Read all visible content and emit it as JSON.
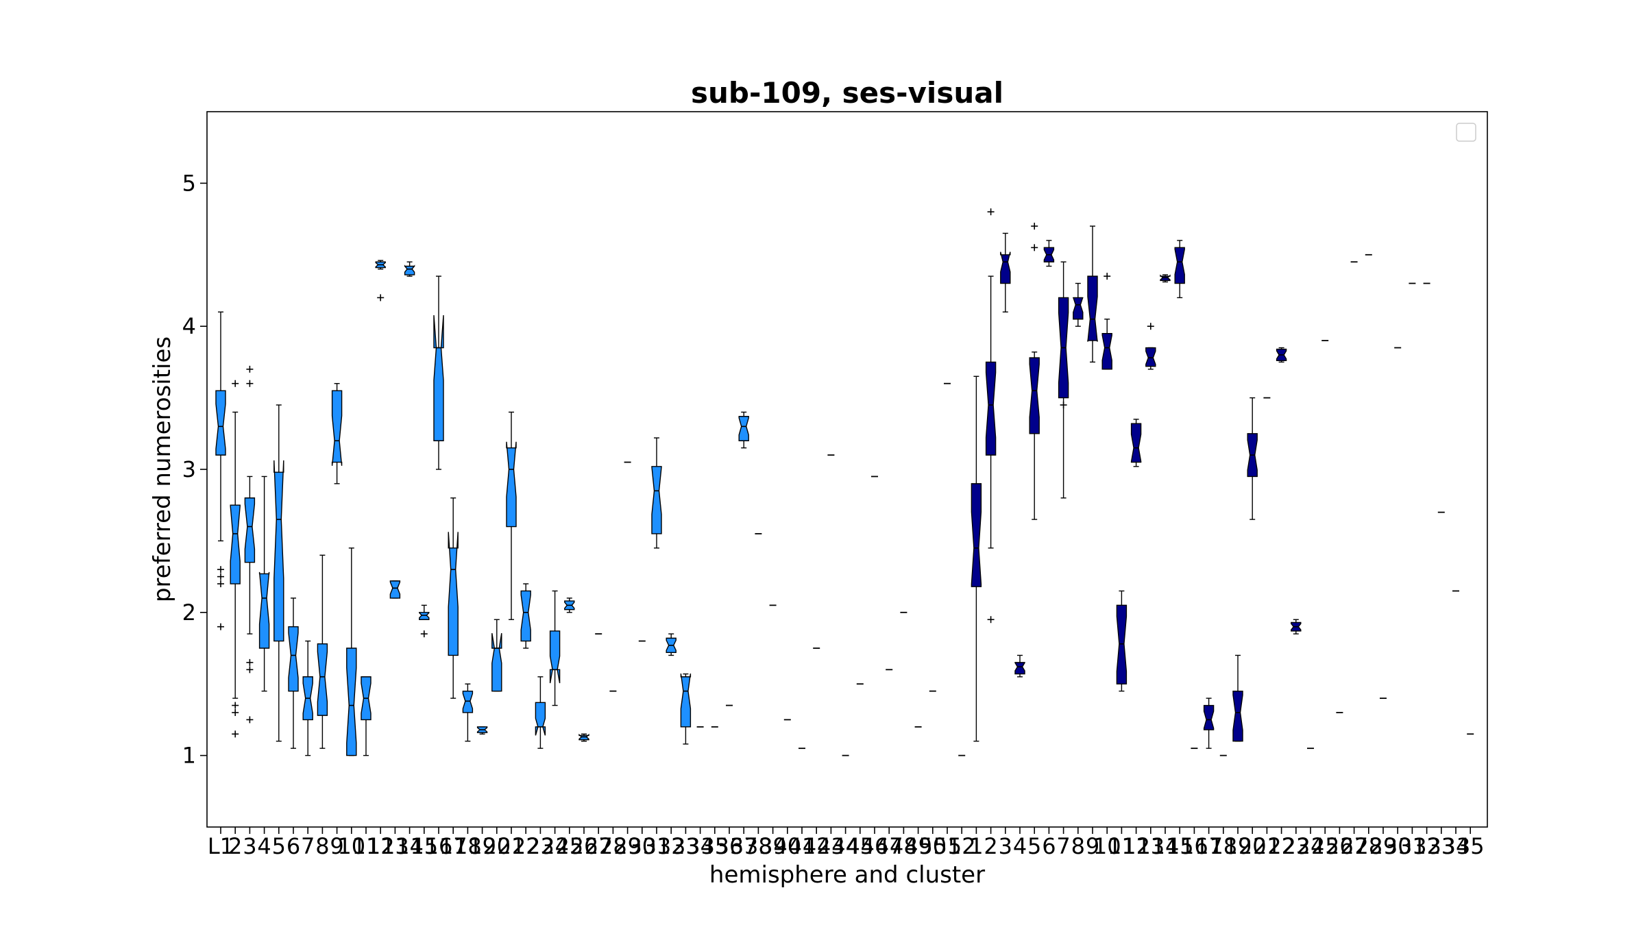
{
  "chart_data": {
    "type": "boxplot",
    "title": "sub-109, ses-visual",
    "xlabel": "hemisphere and cluster",
    "ylabel": "preferred numerosities",
    "ylim": [
      0.5,
      5.5
    ],
    "yticks": [
      1,
      2,
      3,
      4,
      5
    ],
    "legend": "top-right (empty)",
    "grid": false,
    "notched": true,
    "colors": {
      "left": "#1e90ff",
      "right": "#00008b",
      "edge": "#000000",
      "median": "#000000"
    },
    "categories": [
      "L1",
      "L2",
      "L3",
      "L4",
      "L5",
      "L6",
      "L7",
      "L8",
      "L9",
      "L10",
      "L11",
      "L12",
      "L13",
      "L14",
      "L15",
      "L16",
      "L17",
      "L18",
      "L19",
      "L20",
      "L21",
      "L22",
      "L23",
      "L24",
      "L25",
      "L26",
      "L27",
      "L28",
      "L29",
      "L30",
      "L31",
      "L32",
      "L33",
      "L34",
      "L35",
      "L36",
      "L37",
      "L38",
      "L39",
      "L40",
      "L41",
      "L42",
      "L43",
      "L44",
      "L45",
      "L46",
      "L47",
      "L48",
      "L49",
      "L50",
      "L51",
      "L52",
      "R1",
      "R2",
      "R3",
      "R4",
      "R5",
      "R6",
      "R7",
      "R8",
      "R9",
      "R10",
      "R11",
      "R12",
      "R13",
      "R14",
      "R15",
      "R16",
      "R17",
      "R18",
      "R19",
      "R20",
      "R21",
      "R22",
      "R23",
      "R24",
      "R25",
      "R26",
      "R27",
      "R28",
      "R29",
      "R30",
      "R31",
      "R32",
      "R33",
      "R34",
      "R35"
    ],
    "boxes": [
      {
        "cat": "L1",
        "hemi": "L",
        "q1": 3.1,
        "med": 3.3,
        "q3": 3.55,
        "wlo": 2.5,
        "whi": 4.1,
        "fliers": [
          2.3,
          2.25,
          2.2,
          1.9
        ]
      },
      {
        "cat": "L2",
        "hemi": "L",
        "q1": 2.2,
        "med": 2.55,
        "q3": 2.75,
        "wlo": 1.4,
        "whi": 3.4,
        "fliers": [
          3.6,
          1.35,
          1.3,
          1.15
        ]
      },
      {
        "cat": "L3",
        "hemi": "L",
        "q1": 2.35,
        "med": 2.6,
        "q3": 2.8,
        "wlo": 1.85,
        "whi": 2.95,
        "fliers": [
          3.7,
          3.6,
          1.65,
          1.6,
          1.25
        ]
      },
      {
        "cat": "L4",
        "hemi": "L",
        "q1": 1.75,
        "med": 2.1,
        "q3": 2.27,
        "wlo": 1.45,
        "whi": 2.95,
        "fliers": []
      },
      {
        "cat": "L5",
        "hemi": "L",
        "q1": 1.8,
        "med": 2.65,
        "q3": 2.98,
        "wlo": 1.1,
        "whi": 3.45,
        "fliers": []
      },
      {
        "cat": "L6",
        "hemi": "L",
        "q1": 1.45,
        "med": 1.7,
        "q3": 1.9,
        "wlo": 1.05,
        "whi": 2.1,
        "fliers": []
      },
      {
        "cat": "L7",
        "hemi": "L",
        "q1": 1.25,
        "med": 1.4,
        "q3": 1.55,
        "wlo": 1.0,
        "whi": 1.8,
        "fliers": []
      },
      {
        "cat": "L8",
        "hemi": "L",
        "q1": 1.28,
        "med": 1.55,
        "q3": 1.78,
        "wlo": 1.05,
        "whi": 2.4,
        "fliers": []
      },
      {
        "cat": "L9",
        "hemi": "L",
        "q1": 3.05,
        "med": 3.2,
        "q3": 3.55,
        "wlo": 2.9,
        "whi": 3.6,
        "fliers": []
      },
      {
        "cat": "L10",
        "hemi": "L",
        "q1": 1.0,
        "med": 1.35,
        "q3": 1.75,
        "wlo": 1.0,
        "whi": 2.45,
        "fliers": []
      },
      {
        "cat": "L11",
        "hemi": "L",
        "q1": 1.25,
        "med": 1.4,
        "q3": 1.55,
        "wlo": 1.0,
        "whi": 1.55,
        "fliers": []
      },
      {
        "cat": "L12",
        "hemi": "L",
        "q1": 4.41,
        "med": 4.43,
        "q3": 4.45,
        "wlo": 4.4,
        "whi": 4.46,
        "fliers": [
          4.2
        ]
      },
      {
        "cat": "L13",
        "hemi": "L",
        "q1": 2.1,
        "med": 2.17,
        "q3": 2.22,
        "wlo": 2.1,
        "whi": 2.22,
        "fliers": []
      },
      {
        "cat": "L14",
        "hemi": "L",
        "q1": 4.36,
        "med": 4.4,
        "q3": 4.42,
        "wlo": 4.35,
        "whi": 4.45,
        "fliers": []
      },
      {
        "cat": "L15",
        "hemi": "L",
        "q1": 1.95,
        "med": 1.98,
        "q3": 2.0,
        "wlo": 1.95,
        "whi": 2.05,
        "fliers": [
          1.85
        ]
      },
      {
        "cat": "L16",
        "hemi": "L",
        "q1": 3.2,
        "med": 3.85,
        "q3": 3.85,
        "wlo": 3.0,
        "whi": 4.35,
        "fliers": []
      },
      {
        "cat": "L17",
        "hemi": "L",
        "q1": 1.7,
        "med": 2.3,
        "q3": 2.45,
        "wlo": 1.4,
        "whi": 2.8,
        "fliers": []
      },
      {
        "cat": "L18",
        "hemi": "L",
        "q1": 1.3,
        "med": 1.38,
        "q3": 1.45,
        "wlo": 1.1,
        "whi": 1.5,
        "fliers": []
      },
      {
        "cat": "L19",
        "hemi": "L",
        "q1": 1.16,
        "med": 1.18,
        "q3": 1.2,
        "wlo": 1.15,
        "whi": 1.2,
        "fliers": []
      },
      {
        "cat": "L20",
        "hemi": "L",
        "q1": 1.45,
        "med": 1.75,
        "q3": 1.75,
        "wlo": 1.45,
        "whi": 1.95,
        "fliers": []
      },
      {
        "cat": "L21",
        "hemi": "L",
        "q1": 2.6,
        "med": 3.0,
        "q3": 3.15,
        "wlo": 1.95,
        "whi": 3.4,
        "fliers": []
      },
      {
        "cat": "L22",
        "hemi": "L",
        "q1": 1.8,
        "med": 2.0,
        "q3": 2.15,
        "wlo": 1.75,
        "whi": 2.2,
        "fliers": []
      },
      {
        "cat": "L23",
        "hemi": "L",
        "q1": 1.2,
        "med": 1.2,
        "q3": 1.37,
        "wlo": 1.05,
        "whi": 1.55,
        "fliers": []
      },
      {
        "cat": "L24",
        "hemi": "L",
        "q1": 1.6,
        "med": 1.6,
        "q3": 1.87,
        "wlo": 1.35,
        "whi": 2.15,
        "fliers": []
      },
      {
        "cat": "L25",
        "hemi": "L",
        "q1": 2.02,
        "med": 2.05,
        "q3": 2.08,
        "wlo": 2.0,
        "whi": 2.1,
        "fliers": []
      },
      {
        "cat": "L26",
        "hemi": "L",
        "q1": 1.11,
        "med": 1.13,
        "q3": 1.14,
        "wlo": 1.1,
        "whi": 1.15,
        "fliers": []
      },
      {
        "cat": "L27",
        "hemi": "L",
        "single": 1.85
      },
      {
        "cat": "L28",
        "hemi": "L",
        "single": 1.45
      },
      {
        "cat": "L29",
        "hemi": "L",
        "single": 3.05
      },
      {
        "cat": "L30",
        "hemi": "L",
        "single": 1.8
      },
      {
        "cat": "L31",
        "hemi": "L",
        "q1": 2.55,
        "med": 2.85,
        "q3": 3.02,
        "wlo": 2.45,
        "whi": 3.22,
        "fliers": []
      },
      {
        "cat": "L32",
        "hemi": "L",
        "q1": 1.72,
        "med": 1.77,
        "q3": 1.82,
        "wlo": 1.7,
        "whi": 1.85,
        "fliers": []
      },
      {
        "cat": "L33",
        "hemi": "L",
        "q1": 1.2,
        "med": 1.45,
        "q3": 1.55,
        "wlo": 1.08,
        "whi": 1.57,
        "fliers": []
      },
      {
        "cat": "L34",
        "hemi": "L",
        "single": 1.2
      },
      {
        "cat": "L35",
        "hemi": "L",
        "single": 1.2
      },
      {
        "cat": "L36",
        "hemi": "L",
        "single": 1.35
      },
      {
        "cat": "L37",
        "hemi": "L",
        "q1": 3.2,
        "med": 3.3,
        "q3": 3.37,
        "wlo": 3.15,
        "whi": 3.4,
        "fliers": []
      },
      {
        "cat": "L38",
        "hemi": "L",
        "single": 2.55
      },
      {
        "cat": "L39",
        "hemi": "L",
        "single": 2.05
      },
      {
        "cat": "L40",
        "hemi": "L",
        "single": 1.25
      },
      {
        "cat": "L41",
        "hemi": "L",
        "single": 1.05
      },
      {
        "cat": "L42",
        "hemi": "L",
        "single": 1.75
      },
      {
        "cat": "L43",
        "hemi": "L",
        "single": 3.1
      },
      {
        "cat": "L44",
        "hemi": "L",
        "single": 1.0
      },
      {
        "cat": "L45",
        "hemi": "L",
        "single": 1.5
      },
      {
        "cat": "L46",
        "hemi": "L",
        "single": 2.95
      },
      {
        "cat": "L47",
        "hemi": "L",
        "single": 1.6
      },
      {
        "cat": "L48",
        "hemi": "L",
        "single": 2.0
      },
      {
        "cat": "L49",
        "hemi": "L",
        "single": 1.2
      },
      {
        "cat": "L50",
        "hemi": "L",
        "single": 1.45
      },
      {
        "cat": "L51",
        "hemi": "L",
        "single": 3.6
      },
      {
        "cat": "L52",
        "hemi": "L",
        "single": 1.0
      },
      {
        "cat": "R1",
        "hemi": "R",
        "q1": 2.18,
        "med": 2.45,
        "q3": 2.9,
        "wlo": 1.1,
        "whi": 3.65,
        "fliers": []
      },
      {
        "cat": "R2",
        "hemi": "R",
        "q1": 3.1,
        "med": 3.45,
        "q3": 3.75,
        "wlo": 2.45,
        "whi": 4.35,
        "fliers": [
          4.8,
          1.95
        ]
      },
      {
        "cat": "R3",
        "hemi": "R",
        "q1": 4.3,
        "med": 4.45,
        "q3": 4.5,
        "wlo": 4.1,
        "whi": 4.65,
        "fliers": []
      },
      {
        "cat": "R4",
        "hemi": "R",
        "q1": 1.57,
        "med": 1.62,
        "q3": 1.65,
        "wlo": 1.55,
        "whi": 1.7,
        "fliers": []
      },
      {
        "cat": "R5",
        "hemi": "R",
        "q1": 3.25,
        "med": 3.55,
        "q3": 3.78,
        "wlo": 2.65,
        "whi": 3.82,
        "fliers": [
          4.7,
          4.55
        ]
      },
      {
        "cat": "R6",
        "hemi": "R",
        "q1": 4.45,
        "med": 4.5,
        "q3": 4.55,
        "wlo": 4.42,
        "whi": 4.6,
        "fliers": []
      },
      {
        "cat": "R7",
        "hemi": "R",
        "q1": 3.5,
        "med": 3.85,
        "q3": 4.2,
        "wlo": 2.8,
        "whi": 4.45,
        "fliers": [
          3.45
        ]
      },
      {
        "cat": "R8",
        "hemi": "R",
        "q1": 4.05,
        "med": 4.15,
        "q3": 4.2,
        "wlo": 4.0,
        "whi": 4.3,
        "fliers": []
      },
      {
        "cat": "R9",
        "hemi": "R",
        "q1": 3.9,
        "med": 4.05,
        "q3": 4.35,
        "wlo": 3.75,
        "whi": 4.7,
        "fliers": []
      },
      {
        "cat": "R10",
        "hemi": "R",
        "q1": 3.7,
        "med": 3.85,
        "q3": 3.95,
        "wlo": 3.7,
        "whi": 4.05,
        "fliers": [
          4.35
        ]
      },
      {
        "cat": "R11",
        "hemi": "R",
        "q1": 1.5,
        "med": 1.78,
        "q3": 2.05,
        "wlo": 1.45,
        "whi": 2.15,
        "fliers": []
      },
      {
        "cat": "R12",
        "hemi": "R",
        "q1": 3.05,
        "med": 3.15,
        "q3": 3.32,
        "wlo": 3.02,
        "whi": 3.35,
        "fliers": []
      },
      {
        "cat": "R13",
        "hemi": "R",
        "q1": 3.72,
        "med": 3.78,
        "q3": 3.85,
        "wlo": 3.7,
        "whi": 3.85,
        "fliers": [
          4.0
        ]
      },
      {
        "cat": "R14",
        "hemi": "R",
        "q1": 4.32,
        "med": 4.34,
        "q3": 4.35,
        "wlo": 4.31,
        "whi": 4.36,
        "fliers": []
      },
      {
        "cat": "R15",
        "hemi": "R",
        "q1": 4.3,
        "med": 4.45,
        "q3": 4.55,
        "wlo": 4.2,
        "whi": 4.6,
        "fliers": []
      },
      {
        "cat": "R16",
        "hemi": "R",
        "single": 1.05
      },
      {
        "cat": "R17",
        "hemi": "R",
        "q1": 1.18,
        "med": 1.25,
        "q3": 1.35,
        "wlo": 1.05,
        "whi": 1.4,
        "fliers": []
      },
      {
        "cat": "R18",
        "hemi": "R",
        "single": 1.0
      },
      {
        "cat": "R19",
        "hemi": "R",
        "q1": 1.1,
        "med": 1.3,
        "q3": 1.45,
        "wlo": 1.1,
        "whi": 1.7,
        "fliers": []
      },
      {
        "cat": "R20",
        "hemi": "R",
        "q1": 2.95,
        "med": 3.1,
        "q3": 3.25,
        "wlo": 2.65,
        "whi": 3.5,
        "fliers": []
      },
      {
        "cat": "R21",
        "hemi": "R",
        "single": 3.5
      },
      {
        "cat": "R22",
        "hemi": "R",
        "q1": 3.76,
        "med": 3.8,
        "q3": 3.84,
        "wlo": 3.75,
        "whi": 3.85,
        "fliers": []
      },
      {
        "cat": "R23",
        "hemi": "R",
        "q1": 1.87,
        "med": 1.9,
        "q3": 1.93,
        "wlo": 1.85,
        "whi": 1.95,
        "fliers": []
      },
      {
        "cat": "R24",
        "hemi": "R",
        "single": 1.05
      },
      {
        "cat": "R25",
        "hemi": "R",
        "single": 3.9
      },
      {
        "cat": "R26",
        "hemi": "R",
        "single": 1.3
      },
      {
        "cat": "R27",
        "hemi": "R",
        "single": 4.45
      },
      {
        "cat": "R28",
        "hemi": "R",
        "single": 4.5
      },
      {
        "cat": "R29",
        "hemi": "R",
        "single": 1.4
      },
      {
        "cat": "R30",
        "hemi": "R",
        "single": 3.85
      },
      {
        "cat": "R31",
        "hemi": "R",
        "single": 4.3
      },
      {
        "cat": "R32",
        "hemi": "R",
        "single": 4.3
      },
      {
        "cat": "R33",
        "hemi": "R",
        "single": 2.7
      },
      {
        "cat": "R34",
        "hemi": "R",
        "single": 2.15
      },
      {
        "cat": "R35",
        "hemi": "R",
        "single": 1.15
      }
    ]
  }
}
